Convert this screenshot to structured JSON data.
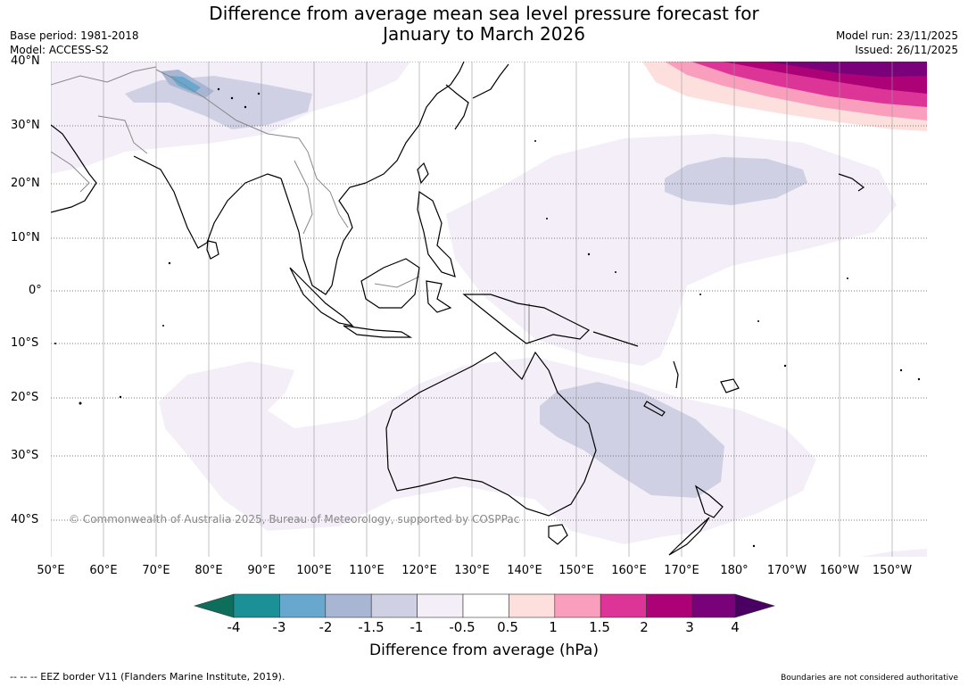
{
  "title": {
    "line1": "Difference from average mean sea level pressure forecast for",
    "line2": "January to March 2026"
  },
  "meta": {
    "base_period": "Base period: 1981-2018",
    "model": "Model: ACCESS-S2",
    "model_run": "Model run: 23/11/2025",
    "issued": "Issued: 26/11/2025"
  },
  "map": {
    "latitudes": [
      "40°N",
      "30°N",
      "20°N",
      "10°N",
      "0°",
      "10°S",
      "20°S",
      "30°S",
      "40°S"
    ],
    "longitudes": [
      "50°E",
      "60°E",
      "70°E",
      "80°E",
      "90°E",
      "100°E",
      "110°E",
      "120°E",
      "130°E",
      "140°E",
      "150°E",
      "160°E",
      "170°E",
      "180°",
      "170°W",
      "160°W",
      "150°W"
    ],
    "copyright": "© Commonwealth of Australia 2025, Bureau of Meteorology, supported by COSPPac"
  },
  "colorbar": {
    "ticks": [
      "-4",
      "-3",
      "-2",
      "-1.5",
      "-1",
      "-0.5",
      "0.5",
      "1",
      "1.5",
      "2",
      "3",
      "4"
    ],
    "colors": [
      "#1b9097",
      "#68a8cf",
      "#a8b5d3",
      "#cfd0e3",
      "#f3eef7",
      "#ffffff",
      "#fde0dd",
      "#f99fbd",
      "#dd3597",
      "#ad0277",
      "#79017a"
    ],
    "under_color": "#0e6e5c",
    "over_color": "#4a0063",
    "label": "Difference from average (hPa)"
  },
  "footer": {
    "eez": "--  --  -- EEZ border V11 (Flanders Marine Institute, 2019).",
    "boundaries": "Boundaries are not considered authoritative"
  }
}
